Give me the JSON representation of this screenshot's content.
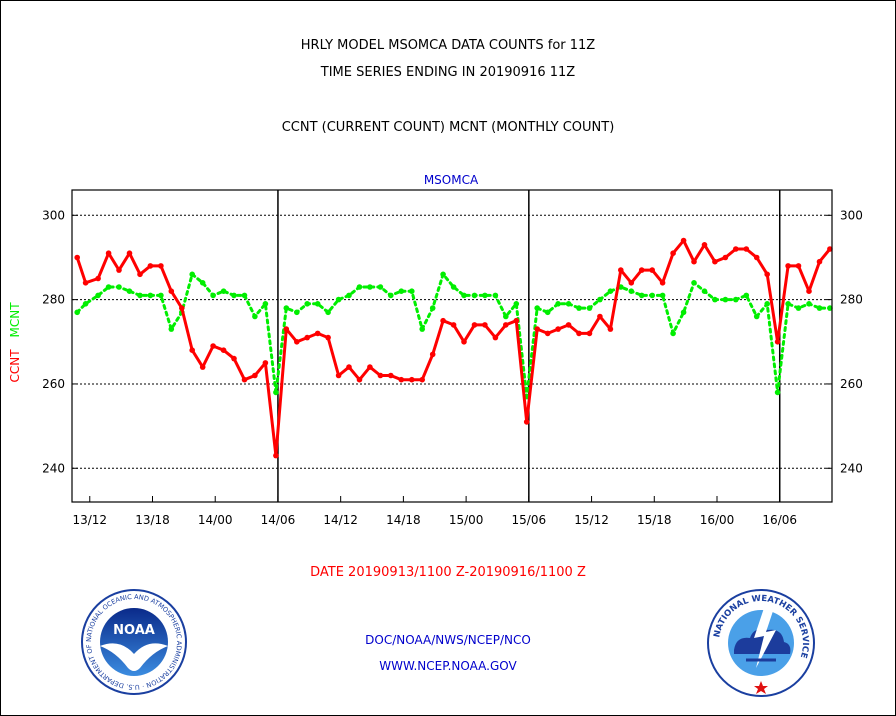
{
  "header": {
    "title_line1": "HRLY MODEL MSOMCA DATA COUNTS for 11Z",
    "title_line2": "TIME SERIES ENDING IN 20190916 11Z",
    "subtitle": "CCNT (CURRENT COUNT) MCNT (MONTHLY COUNT)"
  },
  "footer": {
    "date_range": "DATE 20190913/1100 Z-20190916/1100 Z",
    "org": "DOC/NOAA/NWS/NCEP/NCO",
    "url": "WWW.NCEP.NOAA.GOV"
  },
  "logos": {
    "noaa_text": "NOAA",
    "noaa_ring": "NATIONAL OCEANIC AND ATMOSPHERIC ADMINISTRATION · U.S. DEPARTMENT OF COMMERCE",
    "nws_ring": "NATIONAL WEATHER SERVICE"
  },
  "colors": {
    "ccnt": "#ff0000",
    "mcnt": "#00ee00",
    "label_blue": "#0000cc"
  },
  "chart_data": {
    "type": "line",
    "title": "MSOMCA",
    "ylabel_left": [
      {
        "text": "CCNT",
        "color": "#ff0000"
      },
      {
        "text": "MCNT",
        "color": "#00ee00"
      }
    ],
    "ylim": [
      232,
      306
    ],
    "yticks": [
      240,
      260,
      280,
      300
    ],
    "xlim": [
      -0.7,
      72
    ],
    "x_tick_labels": [
      {
        "x": 1,
        "label": "13/12"
      },
      {
        "x": 7,
        "label": "13/18"
      },
      {
        "x": 13,
        "label": "14/00"
      },
      {
        "x": 19,
        "label": "14/06"
      },
      {
        "x": 25,
        "label": "14/12"
      },
      {
        "x": 31,
        "label": "14/18"
      },
      {
        "x": 37,
        "label": "15/00"
      },
      {
        "x": 43,
        "label": "15/06"
      },
      {
        "x": 49,
        "label": "15/12"
      },
      {
        "x": 55,
        "label": "15/18"
      },
      {
        "x": 61,
        "label": "16/00"
      },
      {
        "x": 67,
        "label": "16/06"
      }
    ],
    "day_boundaries": [
      19,
      43,
      67
    ],
    "grid": true,
    "series": [
      {
        "name": "CCNT",
        "color": "#ff0000",
        "style": "solid",
        "x": [
          -0.2,
          0.6,
          1.8,
          2.8,
          3.8,
          4.8,
          5.8,
          6.8,
          7.8,
          8.8,
          9.8,
          10.8,
          11.8,
          12.8,
          13.8,
          14.8,
          15.8,
          16.8,
          17.8,
          18.8,
          19.8,
          20.8,
          21.8,
          22.8,
          23.8,
          24.8,
          25.8,
          26.8,
          27.8,
          28.8,
          29.8,
          30.8,
          31.8,
          32.8,
          33.8,
          34.8,
          35.8,
          36.8,
          37.8,
          38.8,
          39.8,
          40.8,
          41.8,
          42.8,
          43.8,
          44.8,
          45.8,
          46.8,
          47.8,
          48.8,
          49.8,
          50.8,
          51.8,
          52.8,
          53.8,
          54.8,
          55.8,
          56.8,
          57.8,
          58.8,
          59.8,
          60.8,
          61.8,
          62.8,
          63.8,
          64.8,
          65.8,
          66.8,
          67.8,
          68.8,
          69.8,
          70.8,
          71.8
        ],
        "values": [
          290,
          284,
          285,
          291,
          287,
          291,
          286,
          288,
          288,
          282,
          278,
          268,
          264,
          269,
          268,
          266,
          261,
          262,
          265,
          243,
          273,
          270,
          271,
          272,
          271,
          262,
          264,
          261,
          264,
          262,
          262,
          261,
          261,
          261,
          267,
          275,
          274,
          270,
          274,
          274,
          271,
          274,
          275,
          251,
          273,
          272,
          273,
          274,
          272,
          272,
          276,
          273,
          287,
          284,
          287,
          287,
          284,
          291,
          294,
          289,
          293,
          289,
          290,
          292,
          292,
          290,
          286,
          270,
          288,
          288,
          282,
          289,
          292
        ]
      },
      {
        "name": "MCNT",
        "color": "#00ee00",
        "style": "dotted",
        "x": [
          -0.2,
          0.6,
          1.8,
          2.8,
          3.8,
          4.8,
          5.8,
          6.8,
          7.8,
          8.8,
          9.8,
          10.8,
          11.8,
          12.8,
          13.8,
          14.8,
          15.8,
          16.8,
          17.8,
          18.8,
          19.8,
          20.8,
          21.8,
          22.8,
          23.8,
          24.8,
          25.8,
          26.8,
          27.8,
          28.8,
          29.8,
          30.8,
          31.8,
          32.8,
          33.8,
          34.8,
          35.8,
          36.8,
          37.8,
          38.8,
          39.8,
          40.8,
          41.8,
          42.8,
          43.8,
          44.8,
          45.8,
          46.8,
          47.8,
          48.8,
          49.8,
          50.8,
          51.8,
          52.8,
          53.8,
          54.8,
          55.8,
          56.8,
          57.8,
          58.8,
          59.8,
          60.8,
          61.8,
          62.8,
          63.8,
          64.8,
          65.8,
          66.8,
          67.8,
          68.8,
          69.8,
          70.8,
          71.8
        ],
        "values": [
          277,
          279,
          281,
          283,
          283,
          282,
          281,
          281,
          281,
          273,
          277,
          286,
          284,
          281,
          282,
          281,
          281,
          276,
          279,
          258,
          278,
          277,
          279,
          279,
          277,
          280,
          281,
          283,
          283,
          283,
          281,
          282,
          282,
          273,
          278,
          286,
          283,
          281,
          281,
          281,
          281,
          276,
          279,
          257,
          278,
          277,
          279,
          279,
          278,
          278,
          280,
          282,
          283,
          282,
          281,
          281,
          281,
          272,
          277,
          284,
          282,
          280,
          280,
          280,
          281,
          276,
          279,
          258,
          279,
          278,
          279,
          278,
          278
        ]
      }
    ]
  }
}
